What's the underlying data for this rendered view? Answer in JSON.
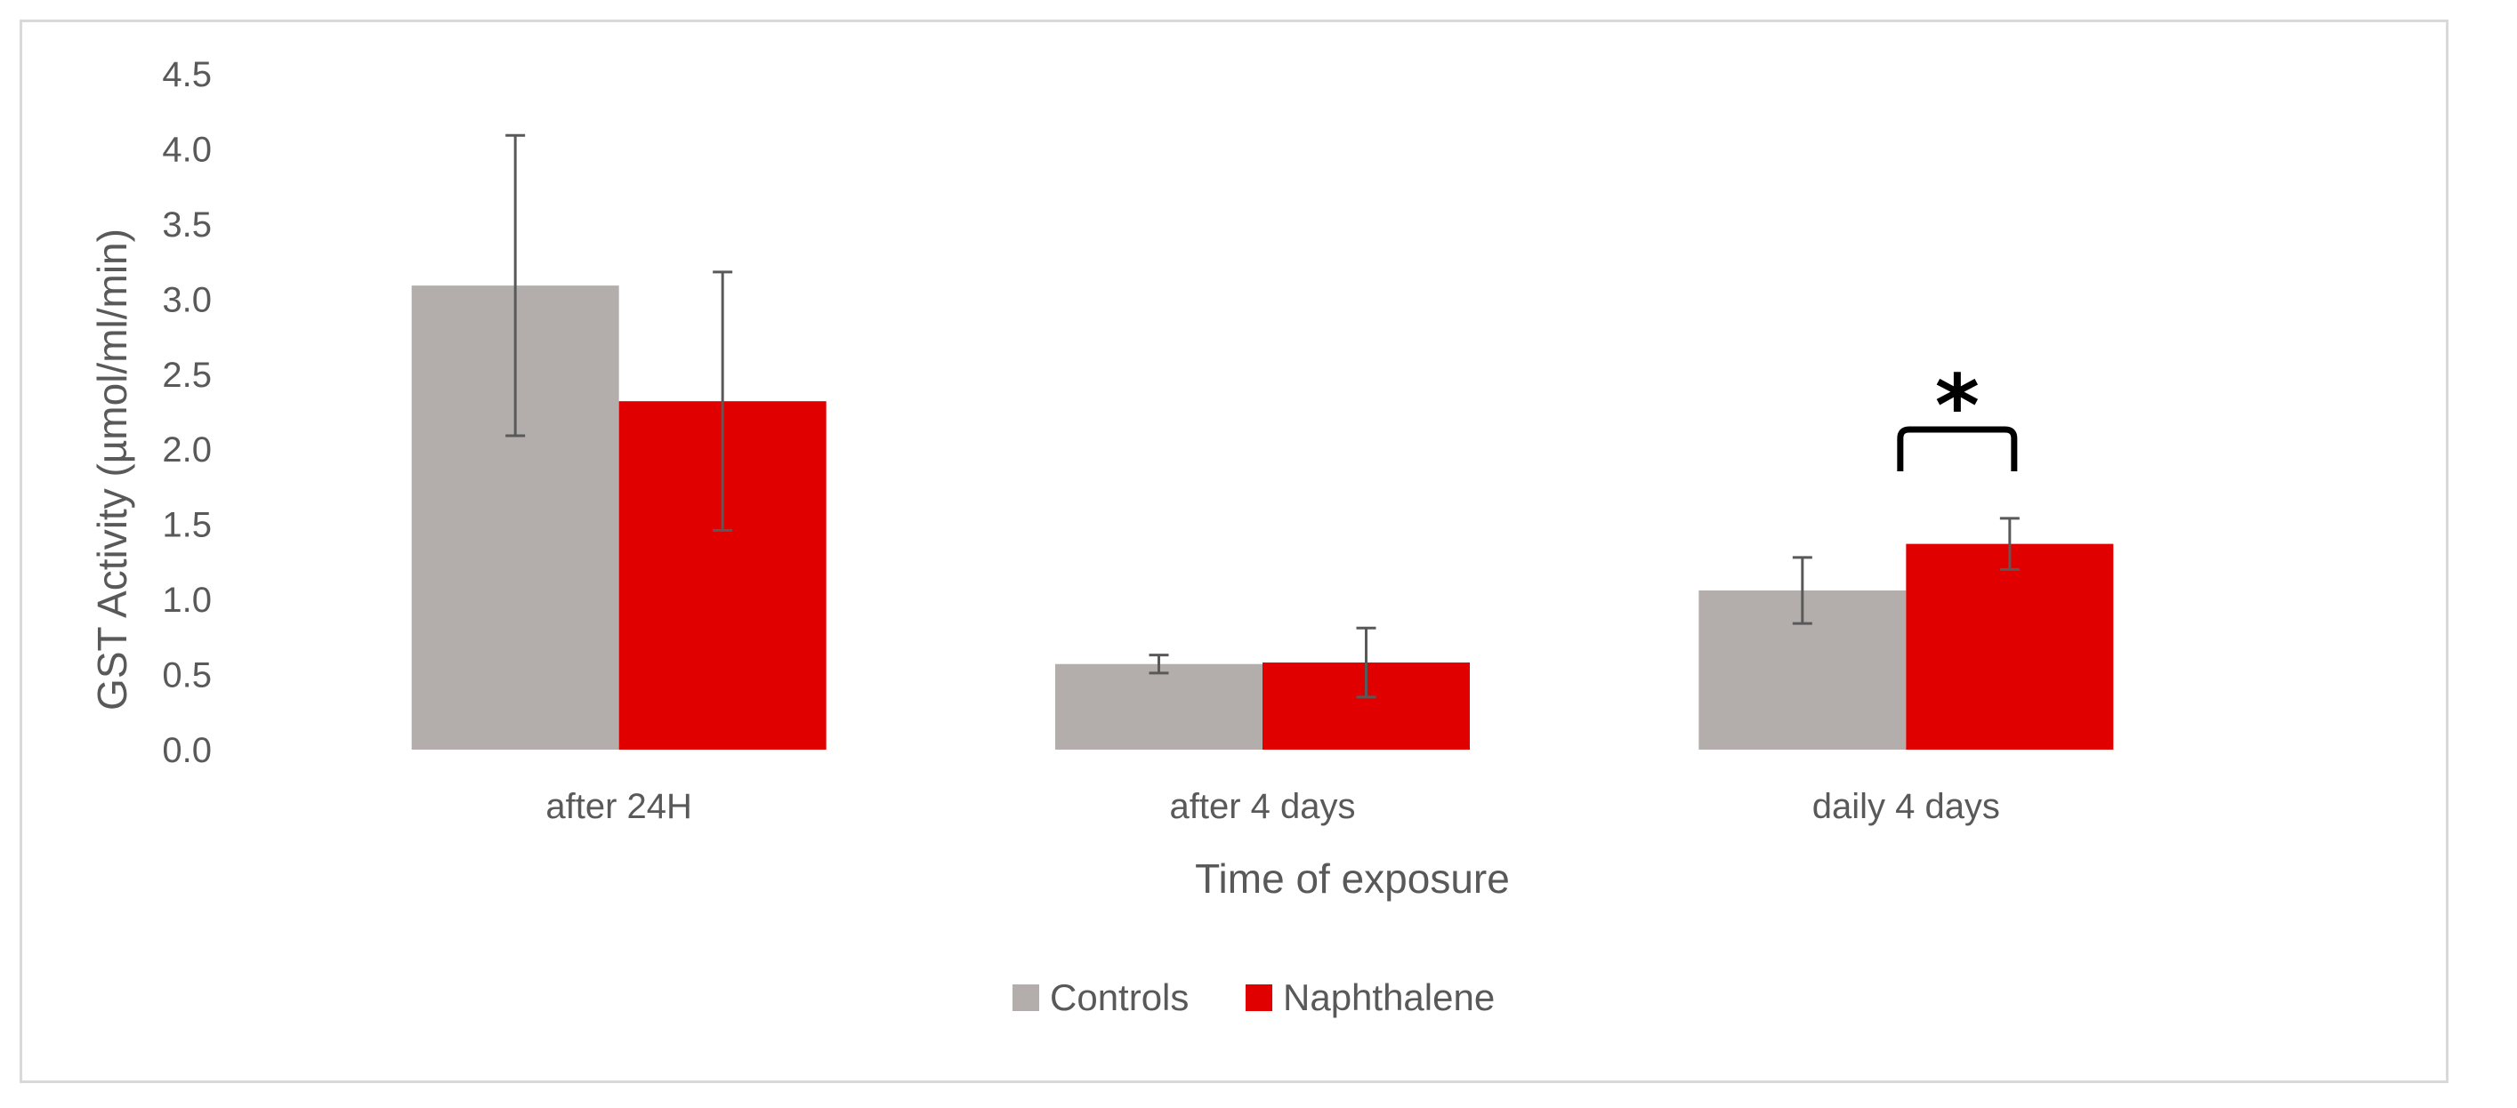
{
  "chart_data": {
    "type": "bar",
    "title": "",
    "xlabel": "Time of exposure",
    "ylabel": "GST Activity (µmol/ml/min)",
    "ylim": [
      0,
      4.5
    ],
    "yticks": [
      "0.0",
      "0.5",
      "1.0",
      "1.5",
      "2.0",
      "2.5",
      "3.0",
      "3.5",
      "4.0",
      "4.5"
    ],
    "categories": [
      "after 24H",
      "after 4 days",
      "daily 4 days"
    ],
    "series": [
      {
        "name": "Controls",
        "color": "#b3aeab",
        "values": [
          3.09,
          0.57,
          1.06
        ],
        "errors": [
          1.0,
          0.06,
          0.22
        ]
      },
      {
        "name": "Naphthalene",
        "color": "#e00000",
        "values": [
          2.32,
          0.58,
          1.37
        ],
        "errors": [
          0.86,
          0.23,
          0.17
        ]
      }
    ],
    "grid": false,
    "legend_position": "bottom-center",
    "annotations": [
      {
        "text": "*",
        "category": "daily 4 days",
        "type": "significance-bracket"
      }
    ]
  }
}
